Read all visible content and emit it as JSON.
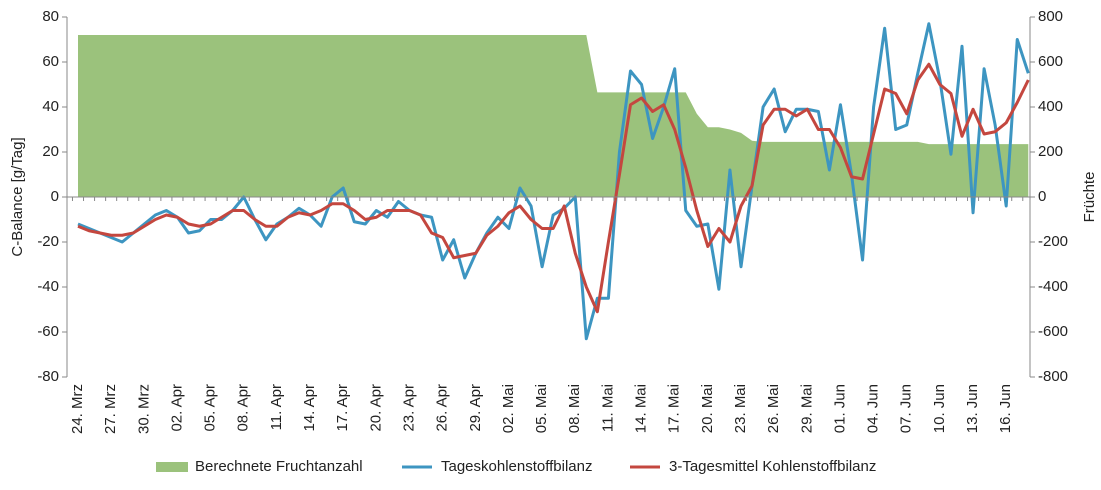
{
  "chart_data": {
    "type": "line",
    "y_label": "C-Balance [g/Tag]",
    "y2_label": "Früchte",
    "categories": [
      "24. Mrz",
      null,
      null,
      "27. Mrz",
      null,
      null,
      "30. Mrz",
      null,
      null,
      "02. Apr",
      null,
      null,
      "05. Apr",
      null,
      null,
      "08. Apr",
      null,
      null,
      "11. Apr",
      null,
      null,
      "14. Apr",
      null,
      null,
      "17. Apr",
      null,
      null,
      "20. Apr",
      null,
      null,
      "23. Apr",
      null,
      null,
      "26. Apr",
      null,
      null,
      "29. Apr",
      null,
      null,
      "02. Mai",
      null,
      null,
      "05. Mai",
      null,
      null,
      "08. Mai",
      null,
      null,
      "11. Mai",
      null,
      null,
      "14. Mai",
      null,
      null,
      "17. Mai",
      null,
      null,
      "20. Mai",
      null,
      null,
      "23. Mai",
      null,
      null,
      "26. Mai",
      null,
      null,
      "29. Mai",
      null,
      null,
      "01. Jun",
      null,
      null,
      "04. Jun",
      null,
      null,
      "07. Jun",
      null,
      null,
      "10. Jun",
      null,
      null,
      "13. Jun",
      null,
      null,
      "16. Jun",
      null,
      null
    ],
    "series": [
      {
        "name": "Berechnete Fruchtanzahl",
        "type": "area",
        "axis": "y2",
        "color": "#9bc27c",
        "values": [
          720,
          720,
          720,
          720,
          720,
          720,
          720,
          720,
          720,
          720,
          720,
          720,
          720,
          720,
          720,
          720,
          720,
          720,
          720,
          720,
          720,
          720,
          720,
          720,
          720,
          720,
          720,
          720,
          720,
          720,
          720,
          720,
          720,
          720,
          720,
          720,
          720,
          720,
          720,
          720,
          720,
          720,
          720,
          720,
          720,
          720,
          720,
          465,
          465,
          465,
          465,
          465,
          465,
          465,
          465,
          465,
          370,
          310,
          310,
          300,
          285,
          250,
          245,
          245,
          245,
          245,
          245,
          245,
          245,
          245,
          245,
          245,
          245,
          245,
          245,
          245,
          245,
          235,
          235,
          235,
          235,
          235,
          235,
          235,
          235,
          235,
          235
        ]
      },
      {
        "name": "Tageskohlenstoffbilanz",
        "type": "line",
        "color": "#3d95c1",
        "values": [
          -12,
          -14,
          -16,
          -18,
          -20,
          -16,
          -12,
          -8,
          -6,
          -9,
          -16,
          -15,
          -10,
          -10,
          -6,
          0,
          -10,
          -19,
          -12,
          -9,
          -5,
          -8,
          -13,
          0,
          4,
          -11,
          -12,
          -6,
          -9,
          -2,
          -6,
          -8,
          -9,
          -28,
          -19,
          -36,
          -25,
          -16,
          -9,
          -14,
          4,
          -4,
          -31,
          -8,
          -5,
          0,
          -63,
          -45,
          -45,
          20,
          56,
          50,
          26,
          40,
          57,
          -6,
          -13,
          -12,
          -41,
          12,
          -31,
          5,
          40,
          48,
          29,
          39,
          39,
          38,
          12,
          41,
          10,
          -28,
          40,
          75,
          30,
          32,
          55,
          77,
          52,
          19,
          67,
          -7,
          57,
          32,
          -4,
          70,
          55
        ]
      },
      {
        "name": "3-Tagesmittel Kohlenstoffbilanz",
        "type": "line",
        "color": "#c4473f",
        "values": [
          -13,
          -15,
          -16,
          -17,
          -17,
          -16,
          -13,
          -10,
          -8,
          -9,
          -12,
          -13,
          -12,
          -9,
          -6,
          -6,
          -10,
          -13,
          -13,
          -9,
          -7,
          -8,
          -6,
          -3,
          -3,
          -6,
          -10,
          -9,
          -6,
          -6,
          -6,
          -8,
          -16,
          -18,
          -27,
          -26,
          -25,
          -17,
          -13,
          -7,
          -4,
          -10,
          -14,
          -14,
          -4,
          -25,
          -40,
          -51,
          -20,
          10,
          41,
          44,
          38,
          41,
          30,
          13,
          -6,
          -22,
          -14,
          -20,
          -4,
          5,
          32,
          39,
          39,
          36,
          39,
          30,
          30,
          22,
          9,
          8,
          28,
          48,
          46,
          37,
          52,
          59,
          50,
          46,
          27,
          39,
          28,
          29,
          33,
          42,
          52
        ]
      }
    ],
    "ylim": [
      -80,
      80
    ],
    "yticks": [
      80,
      60,
      40,
      20,
      0,
      -20,
      -40,
      -60,
      -80
    ],
    "y2lim": [
      -800,
      800
    ],
    "y2ticks": [
      800,
      600,
      400,
      200,
      0,
      -200,
      -400,
      -600,
      -800
    ],
    "grid": false,
    "legend": "bottom"
  }
}
